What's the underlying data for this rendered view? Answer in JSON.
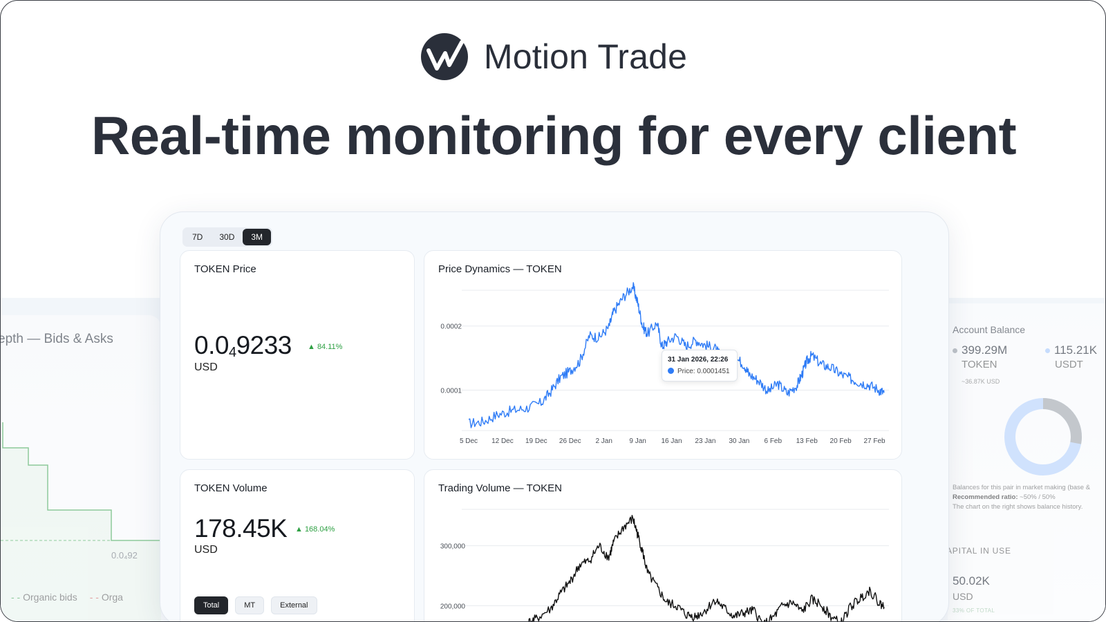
{
  "brand": {
    "name": "Motion Trade",
    "logo_icon": "motion-trade-logo"
  },
  "headline": "Real-time monitoring for every client",
  "range": {
    "options": [
      "7D",
      "30D",
      "3M"
    ],
    "active": "3M"
  },
  "price_card": {
    "title": "TOKEN Price",
    "value_main": "0.0",
    "value_sub": "4",
    "value_tail": "9233",
    "change": "▲ 84.11%",
    "unit": "USD"
  },
  "volume_card": {
    "title": "TOKEN Volume",
    "value": "178.45K",
    "change": "▲ 168.04%",
    "unit": "USD",
    "segments": [
      "Total",
      "MT",
      "External"
    ],
    "active_segment": "Total"
  },
  "tooltip": {
    "date": "31 Jan 2026, 22:26",
    "label": "Price: 0.0001451"
  },
  "left_panel": {
    "title": "epth — Bids & Asks",
    "tick": "0.0₄92",
    "legend": [
      "s",
      "Organic bids",
      "Orga"
    ]
  },
  "right_panel": {
    "title": "Account Balance",
    "token_value": "399.29M",
    "token_unit": "TOKEN",
    "token_sub": "~36.87K USD",
    "usdt_value": "115.21K",
    "usdt_unit": "USDT",
    "note_1": "Balances for this pair in market making (base &",
    "note_2_label": "Recommended ratio:",
    "note_2_value": "~50% / 50%",
    "note_3": "The chart on the right shows balance history.",
    "capital_title": "APITAL IN USE",
    "capital_value": "50.02K",
    "capital_unit": "USD",
    "capital_pct": "33% OF TOTAL",
    "token_share": 0.28
  },
  "colors": {
    "price_line": "#2f7cf6",
    "volume_line": "#111111",
    "up": "#2ea043",
    "token_dot": "#9aa0a8",
    "usdt_dot": "#a9cbff"
  },
  "chart_data": [
    {
      "type": "line",
      "title": "Price Dynamics — TOKEN",
      "x_labels": [
        "5 Dec",
        "12 Dec",
        "19 Dec",
        "26 Dec",
        "2 Jan",
        "9 Jan",
        "16 Jan",
        "23 Jan",
        "30 Jan",
        "6 Feb",
        "13 Feb",
        "20 Feb",
        "27 Feb"
      ],
      "x_days": [
        0,
        7,
        14,
        21,
        28,
        35,
        42,
        49,
        56,
        63,
        70,
        77,
        84
      ],
      "y_ticks": [
        "0.0001",
        "0.0002"
      ],
      "y_tick_values": [
        0.0001,
        0.0002
      ],
      "ylim": [
        3.7e-05,
        0.000274
      ],
      "series": [
        {
          "x": [
            0,
            3,
            6,
            9,
            12,
            15,
            17,
            19,
            21,
            23,
            25,
            27,
            29,
            30,
            32,
            34,
            35,
            36,
            37,
            39,
            40,
            41,
            43,
            45,
            47,
            49,
            51,
            53,
            55,
            57,
            58,
            60,
            62,
            64,
            66,
            68,
            69,
            70,
            71,
            73,
            75,
            77,
            79,
            81,
            83,
            85,
            86
          ],
          "y": [
            4.8e-05,
            5.1e-05,
            6.2e-05,
            6.8e-05,
            7.2e-05,
            8e-05,
            9.8e-05,
            0.00012,
            0.00013,
            0.000145,
            0.000185,
            0.000182,
            0.000198,
            0.000222,
            0.000245,
            0.000262,
            0.000236,
            0.0002,
            0.000188,
            0.000205,
            0.000168,
            0.000175,
            0.000185,
            0.000168,
            0.000178,
            0.00017,
            0.000165,
            0.000145,
            0.000152,
            0.00014,
            0.000125,
            0.000115,
            9.8e-05,
            0.00011,
            9.5e-05,
            0.000108,
            0.000125,
            0.000145,
            0.000154,
            0.00014,
            0.000135,
            0.000125,
            0.000118,
            0.000112,
            0.000108,
            0.0001,
            9.6e-05
          ]
        }
      ]
    },
    {
      "type": "line",
      "title": "Trading Volume — TOKEN",
      "y_ticks": [
        "200,000",
        "300,000"
      ],
      "y_tick_values": [
        200000,
        300000
      ],
      "ylim": [
        150000,
        380000
      ],
      "series": [
        {
          "x": [
            0,
            4,
            8,
            12,
            14,
            17,
            19,
            21,
            23,
            25,
            27,
            29,
            30,
            32,
            34,
            35,
            36,
            37,
            39,
            41,
            43,
            45,
            47,
            49,
            51,
            53,
            55,
            57,
            59,
            61,
            63,
            65,
            67,
            69,
            71,
            73,
            75,
            77,
            79,
            81,
            83,
            85,
            86
          ],
          "y": [
            150000,
            160000,
            165000,
            170000,
            178000,
            195000,
            220000,
            240000,
            268000,
            275000,
            300000,
            280000,
            305000,
            330000,
            345000,
            318000,
            290000,
            255000,
            230000,
            205000,
            200000,
            185000,
            182000,
            192000,
            210000,
            195000,
            182000,
            188000,
            192000,
            168000,
            180000,
            200000,
            205000,
            190000,
            210000,
            202000,
            182000,
            170000,
            198000,
            212000,
            226000,
            205000,
            198000
          ]
        }
      ]
    }
  ]
}
